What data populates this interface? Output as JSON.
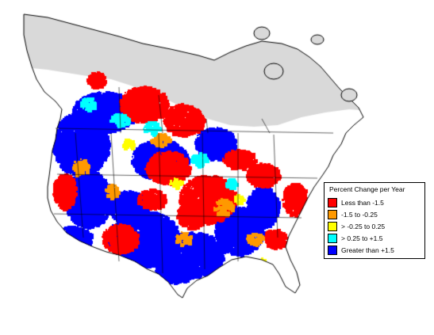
{
  "map": {
    "colors": {
      "unsurveyed": "#d9d9d9",
      "land": "#ffffff",
      "border": "#000000"
    }
  },
  "legend": {
    "title": "Percent Change per Year",
    "items": [
      {
        "label": "Less than -1.5",
        "color": "#ff0000"
      },
      {
        "label": "-1.5 to -0.25",
        "color": "#ff9900"
      },
      {
        "label": "> -0.25 to 0.25",
        "color": "#ffff00"
      },
      {
        "label": "> 0.25 to +1.5",
        "color": "#00ffff"
      },
      {
        "label": "Greater than +1.5",
        "color": "#0000ff"
      }
    ]
  }
}
